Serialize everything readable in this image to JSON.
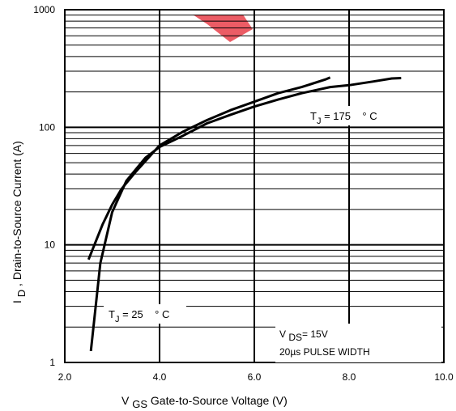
{
  "chart_data": {
    "type": "line",
    "xlabel_prefix": "V",
    "xlabel_sub": "GS",
    "xlabel_rest": " Gate-to-Source Voltage (V)",
    "ylabel_prefix": "I",
    "ylabel_sub": "D",
    "ylabel_rest": ",  Drain-to-Source Current (A)",
    "xlim": [
      2.0,
      10.0
    ],
    "ylim": [
      1,
      1000
    ],
    "yscale": "log",
    "grid": true,
    "x_ticks": [
      "2.0",
      "4.0",
      "6.0",
      "8.0",
      "10.0"
    ],
    "y_ticks": [
      "1",
      "10",
      "100",
      "1000"
    ],
    "series": [
      {
        "x": [
          2.5,
          2.8,
          3.0,
          3.2,
          3.5,
          4.0,
          4.5,
          5.0,
          5.5,
          6.0,
          6.5,
          7.0,
          7.5,
          7.6
        ],
        "y": [
          7.5,
          15,
          22,
          30,
          42,
          70,
          92,
          115,
          140,
          165,
          195,
          220,
          255,
          265
        ]
      },
      {
        "x": [
          2.55,
          2.75,
          3.0,
          3.3,
          3.7,
          4.0,
          4.5,
          5.0,
          5.5,
          6.0,
          6.5,
          7.0,
          7.6,
          8.0,
          8.5,
          8.9,
          9.1
        ],
        "y": [
          1.25,
          7.0,
          19,
          35,
          55,
          68,
          85,
          108,
          128,
          150,
          172,
          195,
          220,
          228,
          245,
          260,
          262
        ]
      }
    ],
    "annotations": {
      "tj175_prefix": "T",
      "tj175_sub": "J",
      "tj175_rest": " = 175    ° C",
      "tj25_prefix": "T",
      "tj25_sub": "J",
      "tj25_rest": " = 25    ° C",
      "vds_prefix": "V ",
      "vds_sub": "DS",
      "vds_rest": "= 15V",
      "pulse": "20µs PULSE WIDTH"
    },
    "colors": {
      "line": "#000000",
      "grid": "#000000",
      "watermark": "#e8404a"
    }
  }
}
